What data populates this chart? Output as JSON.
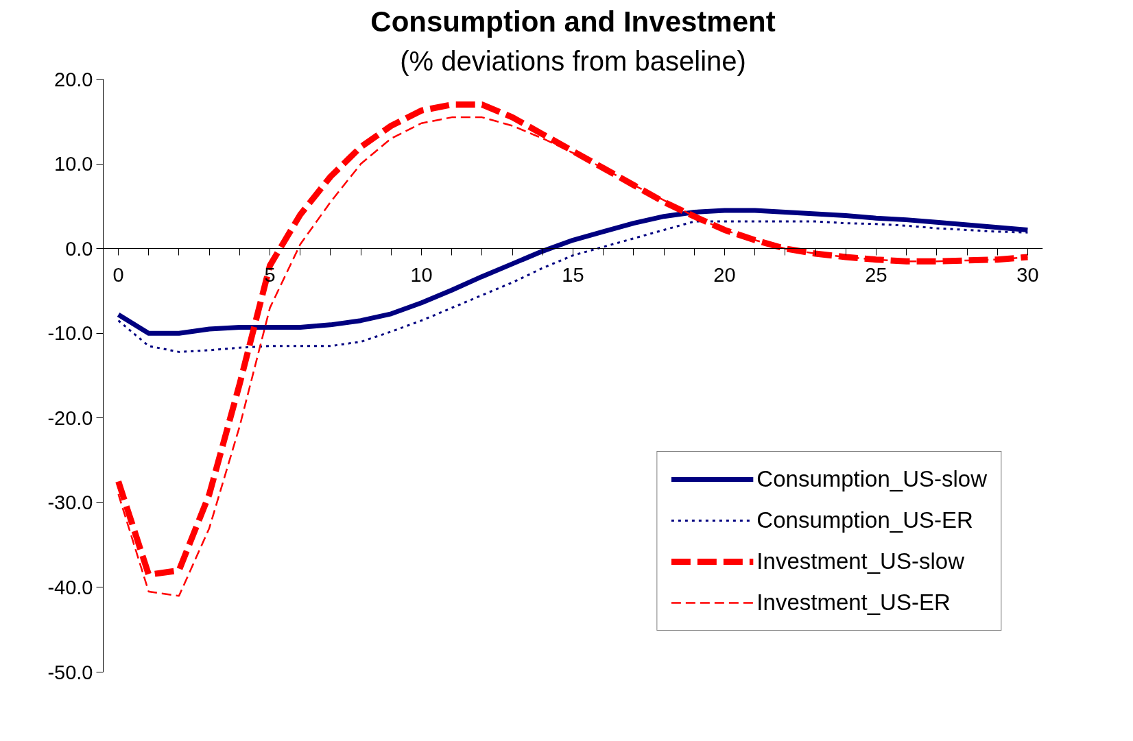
{
  "chart_data": {
    "type": "line",
    "title": "Consumption and Investment",
    "subtitle": "(% deviations from baseline)",
    "x": [
      0,
      1,
      2,
      3,
      4,
      5,
      6,
      7,
      8,
      9,
      10,
      11,
      12,
      13,
      14,
      15,
      16,
      17,
      18,
      19,
      20,
      21,
      22,
      23,
      24,
      25,
      26,
      27,
      28,
      29,
      30
    ],
    "series": [
      {
        "name": "Consumption_US-slow",
        "color": "#000080",
        "line_style": "solid",
        "values": [
          -7.8,
          -10,
          -10,
          -9.5,
          -9.3,
          -9.3,
          -9.3,
          -9.0,
          -8.5,
          -7.7,
          -6.4,
          -4.9,
          -3.3,
          -1.8,
          -0.3,
          1.0,
          2.0,
          3.0,
          3.8,
          4.3,
          4.5,
          4.5,
          4.3,
          4.1,
          3.9,
          3.6,
          3.4,
          3.1,
          2.8,
          2.5,
          2.2
        ]
      },
      {
        "name": "Consumption_US-ER",
        "color": "#000080",
        "line_style": "dotted",
        "values": [
          -8.5,
          -11.5,
          -12.2,
          -12,
          -11.7,
          -11.5,
          -11.5,
          -11.5,
          -11,
          -9.8,
          -8.5,
          -7,
          -5.5,
          -4,
          -2.3,
          -0.8,
          0.2,
          1.2,
          2.2,
          3.2,
          3.2,
          3.2,
          3.2,
          3.2,
          3.0,
          2.9,
          2.7,
          2.4,
          2.2,
          2.0,
          1.9
        ]
      },
      {
        "name": "Investment_US-slow",
        "color": "#ff0000",
        "line_style": "dashed",
        "values": [
          -27.5,
          -38.5,
          -38,
          -29,
          -16,
          -2,
          4,
          8.5,
          12,
          14.5,
          16.3,
          17,
          17,
          15.5,
          13.5,
          11.5,
          9.5,
          7.5,
          5.5,
          3.8,
          2.2,
          1.0,
          0,
          -0.6,
          -1.0,
          -1.3,
          -1.5,
          -1.5,
          -1.4,
          -1.3,
          -1.0
        ]
      },
      {
        "name": "Investment_US-ER",
        "color": "#ff0000",
        "line_style": "dashed",
        "values": [
          -29,
          -40.5,
          -41,
          -33,
          -21,
          -7,
          0.5,
          5.5,
          10,
          13,
          14.8,
          15.5,
          15.5,
          14.5,
          13,
          11.3,
          9.5,
          7.5,
          5.7,
          3.8,
          2.2,
          1.0,
          0,
          -0.6,
          -1.0,
          -1.3,
          -1.5,
          -1.5,
          -1.4,
          -1.3,
          -1.0
        ]
      }
    ],
    "xlim": [
      -0.5,
      30.5
    ],
    "ylim": [
      -50,
      20
    ],
    "xticks": [
      0,
      {
        "value": 1,
        "label": null
      },
      {
        "value": 2,
        "label": null
      },
      {
        "value": 3,
        "label": null
      },
      {
        "value": 4,
        "label": null
      },
      5,
      {
        "value": 6,
        "label": null
      },
      {
        "value": 7,
        "label": null
      },
      {
        "value": 8,
        "label": null
      },
      {
        "value": 9,
        "label": null
      },
      10,
      {
        "value": 11,
        "label": null
      },
      {
        "value": 12,
        "label": null
      },
      {
        "value": 13,
        "label": null
      },
      {
        "value": 14,
        "label": null
      },
      15,
      {
        "value": 16,
        "label": null
      },
      {
        "value": 17,
        "label": null
      },
      {
        "value": 18,
        "label": null
      },
      {
        "value": 19,
        "label": null
      },
      20,
      {
        "value": 21,
        "label": null
      },
      {
        "value": 22,
        "label": null
      },
      {
        "value": 23,
        "label": null
      },
      {
        "value": 24,
        "label": null
      },
      25,
      {
        "value": 26,
        "label": null
      },
      {
        "value": 27,
        "label": null
      },
      {
        "value": 28,
        "label": null
      },
      {
        "value": 29,
        "label": null
      },
      30
    ],
    "yticks": [
      {
        "value": -50,
        "label": "-50.0"
      },
      {
        "value": -40,
        "label": "-40.0"
      },
      {
        "value": -30,
        "label": "-30.0"
      },
      {
        "value": -20,
        "label": "-20.0"
      },
      {
        "value": -10,
        "label": "-10.0"
      },
      {
        "value": 0,
        "label": "0.0"
      },
      {
        "value": 10,
        "label": "10.0"
      },
      {
        "value": 20,
        "label": "20.0"
      }
    ],
    "grid": false,
    "legend": "bottom right",
    "marker": "none"
  }
}
